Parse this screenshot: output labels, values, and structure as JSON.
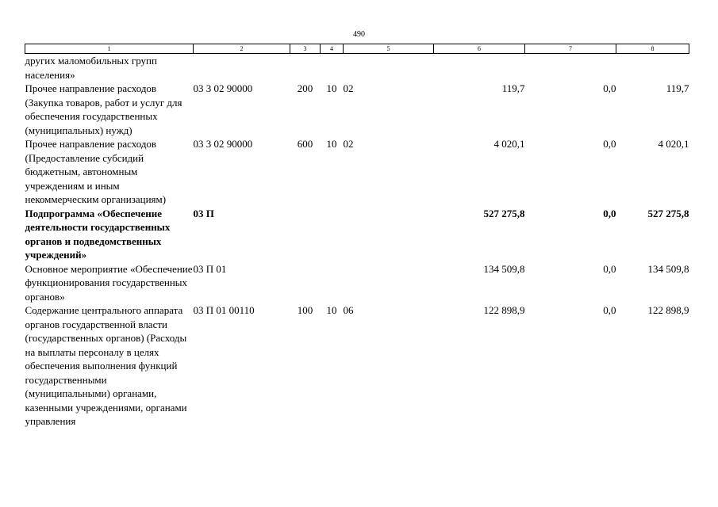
{
  "page": {
    "number": "490"
  },
  "header": [
    "1",
    "2",
    "3",
    "4",
    "5",
    "6",
    "7",
    "8"
  ],
  "rows": [
    {
      "name": "других маломобильных групп населения»",
      "code": "",
      "vr": "",
      "rz": "",
      "pr": "",
      "c6": "",
      "c7": "",
      "c8": "",
      "bold": false
    },
    {
      "name": "Прочее направление расходов (Закупка товаров, работ и услуг для обеспечения государственных (муниципальных) нужд)",
      "code": "03 3 02 90000",
      "vr": "200",
      "rz": "10",
      "pr": "02",
      "c6": "119,7",
      "c7": "0,0",
      "c8": "119,7",
      "bold": false
    },
    {
      "name": "Прочее направление расходов (Предоставление субсидий бюджетным, автономным учреждениям и иным некоммерческим организациям)",
      "code": "03 3 02 90000",
      "vr": "600",
      "rz": "10",
      "pr": "02",
      "c6": "4 020,1",
      "c7": "0,0",
      "c8": "4 020,1",
      "bold": false
    },
    {
      "name": "Подпрограмма «Обеспечение деятельности государственных органов и подведомственных учреждений»",
      "code": "03 П",
      "vr": "",
      "rz": "",
      "pr": "",
      "c6": "527 275,8",
      "c7": "0,0",
      "c8": "527 275,8",
      "bold": true
    },
    {
      "name": "Основное мероприятие «Обеспечение функционирования государственных органов»",
      "code": "03 П 01",
      "vr": "",
      "rz": "",
      "pr": "",
      "c6": "134 509,8",
      "c7": "0,0",
      "c8": "134 509,8",
      "bold": false
    },
    {
      "name": "Содержание центрального аппарата органов государственной власти (государственных органов) (Расходы на выплаты персоналу в целях обеспечения выполнения функций государственными (муниципальными) органами, казенными учреждениями, органами управления",
      "code": "03 П 01 00110",
      "vr": "100",
      "rz": "10",
      "pr": "06",
      "c6": "122 898,9",
      "c7": "0,0",
      "c8": "122 898,9",
      "bold": false
    }
  ]
}
